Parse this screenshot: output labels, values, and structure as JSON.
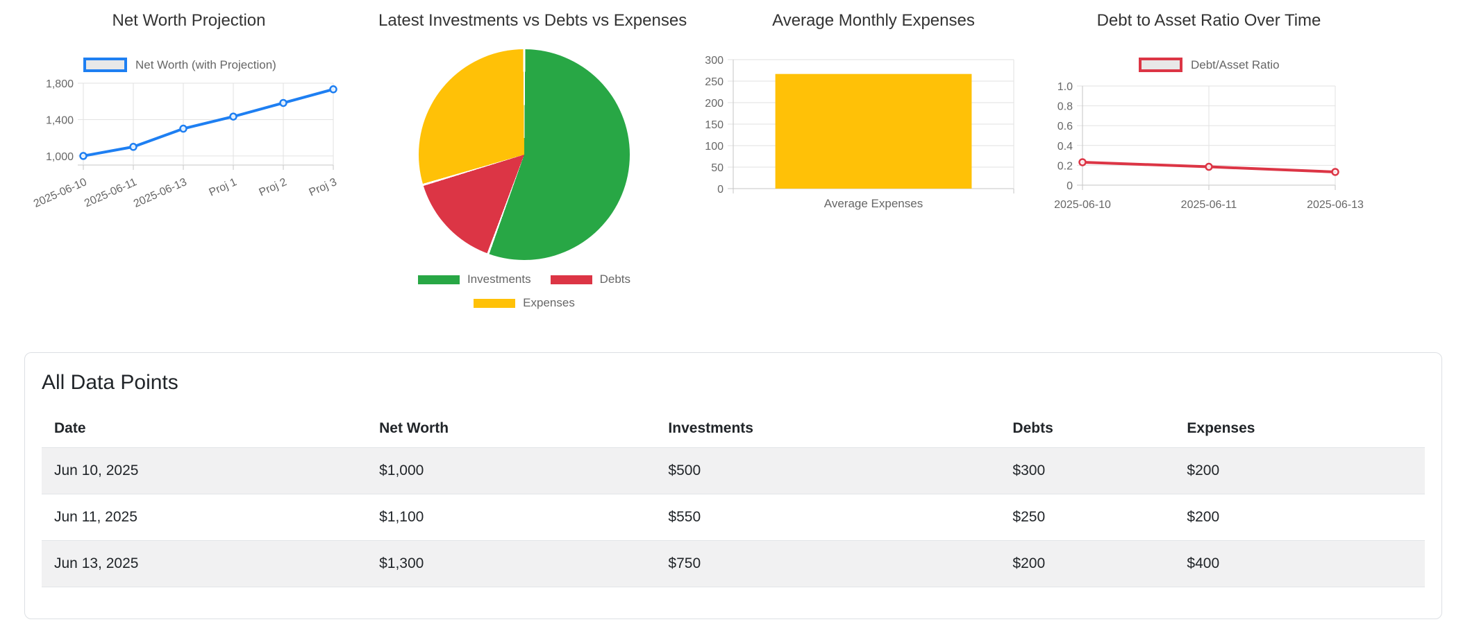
{
  "table_card": {
    "title": "All Data Points",
    "columns": [
      "Date",
      "Net Worth",
      "Investments",
      "Debts",
      "Expenses"
    ],
    "rows": [
      [
        "Jun 10, 2025",
        "$1,000",
        "$500",
        "$300",
        "$200"
      ],
      [
        "Jun 11, 2025",
        "$1,100",
        "$550",
        "$250",
        "$200"
      ],
      [
        "Jun 13, 2025",
        "$1,300",
        "$750",
        "$200",
        "$400"
      ]
    ]
  },
  "chart_data": [
    {
      "type": "line",
      "title": "Net Worth Projection",
      "legend": "Net Worth (with Projection)",
      "categories": [
        "2025-06-10",
        "2025-06-11",
        "2025-06-13",
        "Proj 1",
        "Proj 2",
        "Proj 3"
      ],
      "values": [
        1000,
        1100,
        1300,
        1433,
        1583,
        1733
      ],
      "ylim": [
        900,
        1800
      ],
      "yticks": [
        {
          "v": 1000,
          "label": "1,000"
        },
        {
          "v": 1400,
          "label": "1,400"
        },
        {
          "v": 1800,
          "label": "1,800"
        }
      ],
      "color": "#1E7FF2",
      "legend_fill": "#E8E8E8",
      "grid": true,
      "legend_position": "top"
    },
    {
      "type": "pie",
      "title": "Latest Investments vs Debts vs Expenses",
      "labels": [
        "Investments",
        "Debts",
        "Expenses"
      ],
      "values": [
        750,
        200,
        400
      ],
      "colors": [
        "#28A745",
        "#DC3545",
        "#FFC107"
      ],
      "legend_position": "bottom"
    },
    {
      "type": "bar",
      "title": "Average Monthly Expenses",
      "categories": [
        "Average Expenses"
      ],
      "values": [
        266.67
      ],
      "ylim": [
        0,
        300
      ],
      "yticks": [
        {
          "v": 0,
          "label": "0"
        },
        {
          "v": 50,
          "label": "50"
        },
        {
          "v": 100,
          "label": "100"
        },
        {
          "v": 150,
          "label": "150"
        },
        {
          "v": 200,
          "label": "200"
        },
        {
          "v": 250,
          "label": "250"
        },
        {
          "v": 300,
          "label": "300"
        }
      ],
      "color": "#FFC107",
      "grid": true
    },
    {
      "type": "line",
      "title": "Debt to Asset Ratio Over Time",
      "legend": "Debt/Asset Ratio",
      "categories": [
        "2025-06-10",
        "2025-06-11",
        "2025-06-13"
      ],
      "values": [
        0.231,
        0.185,
        0.133
      ],
      "ylim": [
        0,
        1
      ],
      "yticks": [
        {
          "v": 0,
          "label": "0"
        },
        {
          "v": 0.2,
          "label": "0.2"
        },
        {
          "v": 0.4,
          "label": "0.4"
        },
        {
          "v": 0.6,
          "label": "0.6"
        },
        {
          "v": 0.8,
          "label": "0.8"
        },
        {
          "v": 1.0,
          "label": "1.0"
        }
      ],
      "color": "#DC3545",
      "legend_fill": "#E8E8E8",
      "grid": true,
      "legend_position": "top"
    }
  ]
}
